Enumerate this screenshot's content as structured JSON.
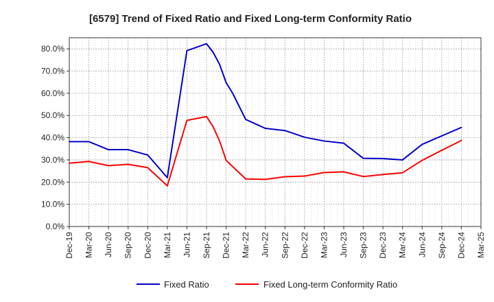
{
  "chart_data": {
    "type": "line",
    "title": "[6579]  Trend of Fixed Ratio and Fixed Long-term Conformity Ratio",
    "xlabel": "",
    "ylabel": "",
    "x_ticks": [
      "Dec-19",
      "Mar-20",
      "Jun-20",
      "Sep-20",
      "Dec-20",
      "Mar-21",
      "Jun-21",
      "Sep-21",
      "Dec-21",
      "Mar-22",
      "Jun-22",
      "Sep-22",
      "Dec-22",
      "Mar-23",
      "Jun-23",
      "Sep-23",
      "Dec-23",
      "Mar-24",
      "Jun-24",
      "Sep-24",
      "Dec-24",
      "Mar-25"
    ],
    "y_ticks": [
      "0.0%",
      "10.0%",
      "20.0%",
      "30.0%",
      "40.0%",
      "50.0%",
      "60.0%",
      "70.0%",
      "80.0%"
    ],
    "ylim": [
      0,
      85
    ],
    "grid": true,
    "legend_position": "bottom",
    "series": [
      {
        "name": "Fixed Ratio",
        "color": "#0000cc",
        "points": [
          [
            "Dec-19",
            38.2
          ],
          [
            "Mar-20",
            38.2
          ],
          [
            "Jun-20",
            34.6
          ],
          [
            "Sep-20",
            34.6
          ],
          [
            "Dec-20",
            32.2
          ],
          [
            "Mar-21",
            22.0
          ],
          [
            "Jun-21",
            79.2
          ],
          [
            "Sep-21",
            82.3
          ],
          [
            "Oct-21",
            78.5
          ],
          [
            "Nov-21",
            73.0
          ],
          [
            "Dec-21",
            64.8
          ],
          [
            "Jan-22",
            60.0
          ],
          [
            "Mar-22",
            48.2
          ],
          [
            "Jun-22",
            44.2
          ],
          [
            "Sep-22",
            43.2
          ],
          [
            "Dec-22",
            40.2
          ],
          [
            "Mar-23",
            38.5
          ],
          [
            "Jun-23",
            37.5
          ],
          [
            "Sep-23",
            30.7
          ],
          [
            "Dec-23",
            30.6
          ],
          [
            "Mar-24",
            30.0
          ],
          [
            "Jun-24",
            37.0
          ],
          [
            "Sep-24",
            40.8
          ],
          [
            "Dec-24",
            44.6
          ]
        ]
      },
      {
        "name": "Fixed Long-term Conformity Ratio",
        "color": "#ff0000",
        "points": [
          [
            "Dec-19",
            28.5
          ],
          [
            "Mar-20",
            29.3
          ],
          [
            "Jun-20",
            27.4
          ],
          [
            "Sep-20",
            28.0
          ],
          [
            "Dec-20",
            26.5
          ],
          [
            "Mar-21",
            18.3
          ],
          [
            "Jun-21",
            47.8
          ],
          [
            "Sep-21",
            49.5
          ],
          [
            "Oct-21",
            45.0
          ],
          [
            "Nov-21",
            38.5
          ],
          [
            "Dec-21",
            29.8
          ],
          [
            "Mar-22",
            21.4
          ],
          [
            "Jun-22",
            21.2
          ],
          [
            "Sep-22",
            22.4
          ],
          [
            "Dec-22",
            22.7
          ],
          [
            "Mar-23",
            24.3
          ],
          [
            "Jun-23",
            24.6
          ],
          [
            "Sep-23",
            22.5
          ],
          [
            "Dec-23",
            23.4
          ],
          [
            "Mar-24",
            24.2
          ],
          [
            "Jun-24",
            29.8
          ],
          [
            "Sep-24",
            34.3
          ],
          [
            "Dec-24",
            38.7
          ]
        ]
      }
    ]
  }
}
